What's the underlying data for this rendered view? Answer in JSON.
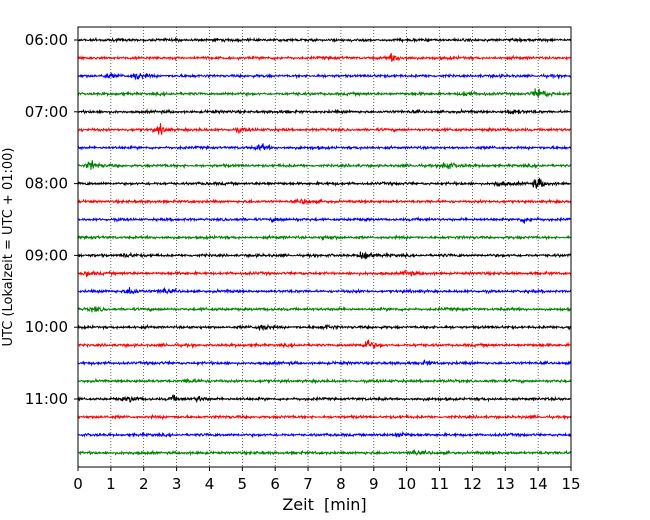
{
  "chart_data": {
    "type": "line",
    "subtype": "seismogram-helicorder",
    "xlabel": "Zeit  [min]",
    "ylabel": "UTC (Lokalzeit = UTC + 01:00)",
    "xlim": [
      0,
      15
    ],
    "x_ticks": [
      0,
      1,
      2,
      3,
      4,
      5,
      6,
      7,
      8,
      9,
      10,
      11,
      12,
      13,
      14,
      15
    ],
    "y_tick_labels": [
      "06:00",
      "07:00",
      "08:00",
      "09:00",
      "10:00",
      "11:00"
    ],
    "trace_interval_minutes": 15,
    "trace_count": 24,
    "trace_colors": [
      "#000000",
      "#ff0000",
      "#0000ff",
      "#008000"
    ],
    "vertical_grid": "dotted",
    "events": [
      {
        "trace": 1,
        "minute": 9.6,
        "amplitude": 6
      },
      {
        "trace": 2,
        "minute": 1.8,
        "amplitude": 6
      },
      {
        "trace": 2,
        "minute": 0.9,
        "amplitude": 4
      },
      {
        "trace": 3,
        "minute": 14.0,
        "amplitude": 9
      },
      {
        "trace": 3,
        "minute": 11.8,
        "amplitude": 3
      },
      {
        "trace": 4,
        "minute": 13.2,
        "amplitude": 4
      },
      {
        "trace": 5,
        "minute": 2.5,
        "amplitude": 7
      },
      {
        "trace": 5,
        "minute": 4.9,
        "amplitude": 3
      },
      {
        "trace": 6,
        "minute": 5.6,
        "amplitude": 5
      },
      {
        "trace": 7,
        "minute": 0.4,
        "amplitude": 8
      },
      {
        "trace": 7,
        "minute": 11.2,
        "amplitude": 8
      },
      {
        "trace": 8,
        "minute": 14.0,
        "amplitude": 9
      },
      {
        "trace": 8,
        "minute": 12.8,
        "amplitude": 4
      },
      {
        "trace": 9,
        "minute": 6.9,
        "amplitude": 4
      },
      {
        "trace": 10,
        "minute": 6.0,
        "amplitude": 3
      },
      {
        "trace": 10,
        "minute": 13.6,
        "amplitude": 5
      },
      {
        "trace": 11,
        "minute": 7.5,
        "amplitude": 3
      },
      {
        "trace": 12,
        "minute": 8.7,
        "amplitude": 9
      },
      {
        "trace": 12,
        "minute": 1.5,
        "amplitude": 3
      },
      {
        "trace": 13,
        "minute": 10.0,
        "amplitude": 4
      },
      {
        "trace": 13,
        "minute": 0.3,
        "amplitude": 4
      },
      {
        "trace": 14,
        "minute": 1.6,
        "amplitude": 6
      },
      {
        "trace": 14,
        "minute": 2.6,
        "amplitude": 4
      },
      {
        "trace": 15,
        "minute": 0.5,
        "amplitude": 3
      },
      {
        "trace": 16,
        "minute": 5.6,
        "amplitude": 5
      },
      {
        "trace": 16,
        "minute": 7.6,
        "amplitude": 3
      },
      {
        "trace": 16,
        "minute": 15.0,
        "amplitude": 4
      },
      {
        "trace": 17,
        "minute": 8.8,
        "amplitude": 9
      },
      {
        "trace": 18,
        "minute": 10.6,
        "amplitude": 3
      },
      {
        "trace": 19,
        "minute": 3.4,
        "amplitude": 3
      },
      {
        "trace": 20,
        "minute": 1.6,
        "amplitude": 4
      },
      {
        "trace": 20,
        "minute": 2.9,
        "amplitude": 4
      },
      {
        "trace": 20,
        "minute": 3.7,
        "amplitude": 4
      },
      {
        "trace": 22,
        "minute": 9.8,
        "amplitude": 4
      },
      {
        "trace": 23,
        "minute": 10.2,
        "amplitude": 4
      }
    ]
  }
}
